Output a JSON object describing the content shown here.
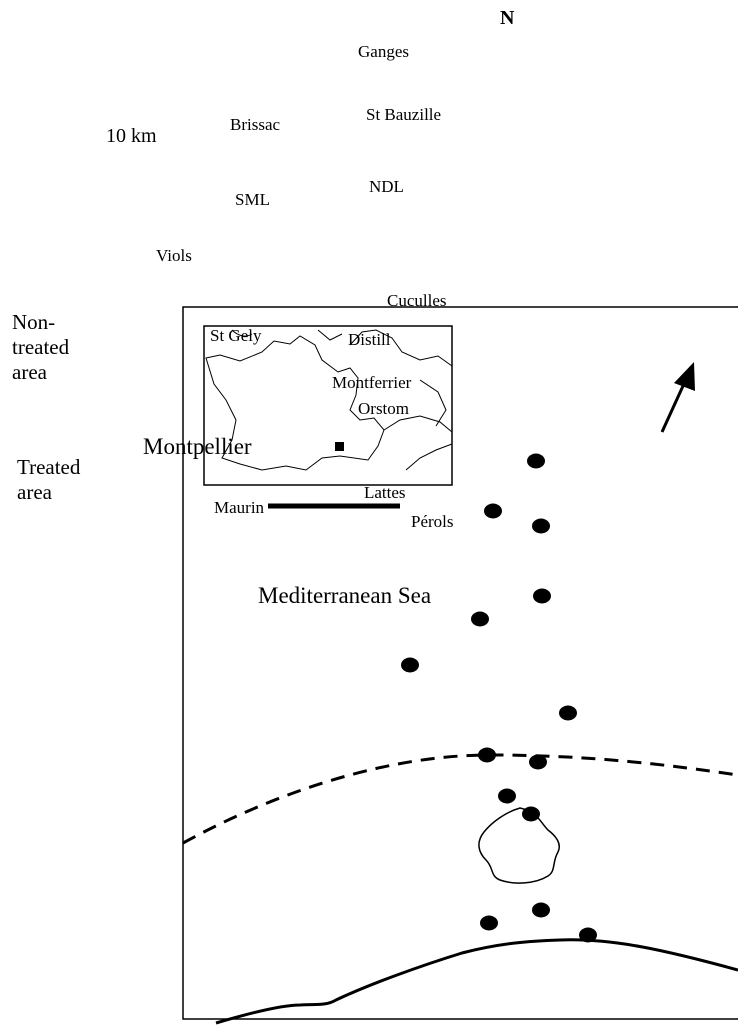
{
  "north_label": "N",
  "scale_label": "10 km",
  "legend": {
    "non_treated_lines": [
      "Non-",
      "treated",
      "area"
    ],
    "treated_lines": [
      "Treated",
      "area"
    ]
  },
  "places": {
    "ganges": "Ganges",
    "st_bauzille": "St Bauzille",
    "brissac": "Brissac",
    "sml": "SML",
    "ndl": "NDL",
    "viols": "Viols",
    "cuculles": "Cuculles",
    "st_gely": "St Gely",
    "distill": "Distill",
    "montferrier": "Montferrier",
    "orstom": "Orstom",
    "montpellier": "Montpellier",
    "lattes": "Lattes",
    "maurin": "Maurin",
    "perols": "Pérols",
    "mediterranean_sea": "Mediterranean Sea"
  },
  "sampling_site_count": 14,
  "colors": {
    "ink": "#000000",
    "paper": "#ffffff"
  }
}
